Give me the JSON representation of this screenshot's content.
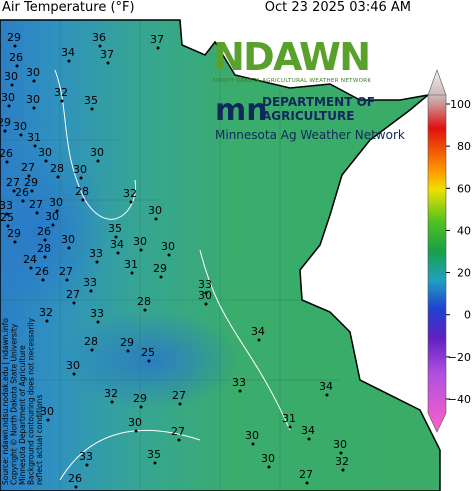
{
  "header": {
    "title": "Air Temperature (°F)",
    "timestamp": "Oct 23 2025 03:46 AM"
  },
  "logos": {
    "ndawn": "NDAWN",
    "ndawn_sub": "NORTH DAKOTA AGRICULTURAL WEATHER NETWORK",
    "mda_line1": "DEPARTMENT OF",
    "mda_line2": "AGRICULTURE",
    "network": "Minnesota Ag Weather Network"
  },
  "colorbar": {
    "ticks": [
      {
        "value": 100,
        "label": "100"
      },
      {
        "value": 80,
        "label": "80"
      },
      {
        "value": 60,
        "label": "60"
      },
      {
        "value": 40,
        "label": "40"
      },
      {
        "value": 20,
        "label": "20"
      },
      {
        "value": 0,
        "label": "0"
      },
      {
        "value": -20,
        "label": "−20"
      },
      {
        "value": -40,
        "label": "−40"
      }
    ]
  },
  "stations": [
    "29",
    "34",
    "36",
    "37",
    "37",
    "26",
    "30",
    "30",
    "32",
    "30",
    "35",
    "30",
    "29",
    "30",
    "31",
    "26",
    "30",
    "30",
    "27",
    "28",
    "30",
    "27",
    "29",
    "28",
    "26",
    "32",
    "33",
    "27",
    "30",
    "30",
    "25",
    "30",
    "35",
    "29",
    "26",
    "30",
    "34",
    "30",
    "30",
    "28",
    "33",
    "24",
    "31",
    "29",
    "27",
    "26",
    "33",
    "33",
    "30",
    "27",
    "28",
    "32",
    "33",
    "34",
    "28",
    "29",
    "25",
    "30",
    "33",
    "34",
    "32",
    "29",
    "27",
    "31",
    "30",
    "30",
    "27",
    "30",
    "34",
    "30",
    "30",
    "33",
    "35",
    "32",
    "27",
    "26"
  ],
  "source": [
    "Source: ndawn.ndsu.nodak.edu | ndawn.info",
    "Copyright © North Dakota State University",
    "Minnesota Department of Agriculture",
    "Background contouring does not necessarily",
    "reflect actual conditions"
  ]
}
